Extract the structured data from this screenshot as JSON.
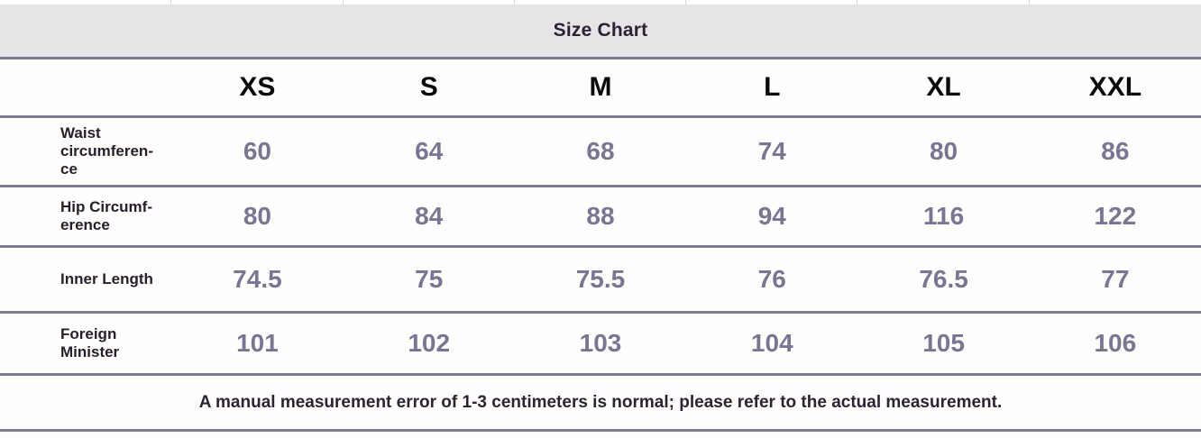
{
  "title": "Size Chart",
  "chart_data": {
    "type": "table",
    "title": "Size Chart",
    "columns": [
      "XS",
      "S",
      "M",
      "L",
      "XL",
      "XXL"
    ],
    "rows": [
      {
        "label": "Waist circumference",
        "values": [
          "60",
          "64",
          "68",
          "74",
          "80",
          "86"
        ]
      },
      {
        "label": "Hip Circumference",
        "values": [
          "80",
          "84",
          "88",
          "94",
          "116",
          "122"
        ]
      },
      {
        "label": "Inner Length",
        "values": [
          "74.5",
          "75",
          "75.5",
          "76",
          "76.5",
          "77"
        ]
      },
      {
        "label": "Foreign Minister",
        "values": [
          "101",
          "102",
          "103",
          "104",
          "105",
          "106"
        ]
      }
    ],
    "footnote": "A manual measurement error of 1-3 centimeters is normal; please refer to the actual measurement."
  },
  "display": {
    "row_labels": [
      "Waist\ncircumferen-\nce",
      "Hip Circumf-\nerence",
      "Inner Length",
      "Foreign\nMinister"
    ]
  },
  "colors": {
    "title_band_bg": "#e6e4e6",
    "rule": "#817c90",
    "value_text": "#7b7594",
    "label_text": "#25202b",
    "title_text": "#2b2233"
  }
}
